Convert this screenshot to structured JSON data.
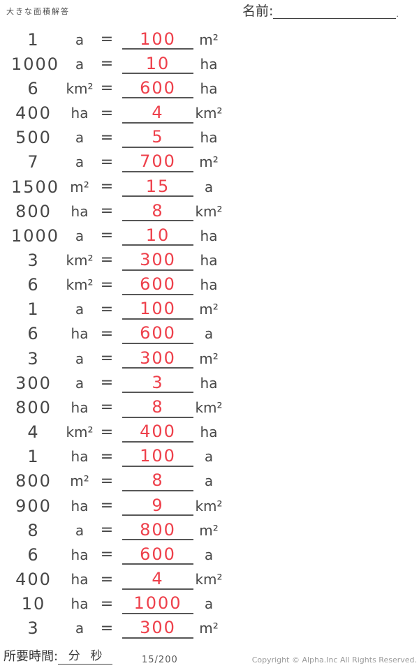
{
  "header": {
    "title": "大きな面積解答",
    "name_label": "名前:",
    "name_suffix": "."
  },
  "equals": "=",
  "rows": [
    {
      "value": "1",
      "unit": "a",
      "answer": "100",
      "answer_unit": "m²"
    },
    {
      "value": "1000",
      "unit": "a",
      "answer": "10",
      "answer_unit": "ha"
    },
    {
      "value": "6",
      "unit": "km²",
      "answer": "600",
      "answer_unit": "ha"
    },
    {
      "value": "400",
      "unit": "ha",
      "answer": "4",
      "answer_unit": "km²"
    },
    {
      "value": "500",
      "unit": "a",
      "answer": "5",
      "answer_unit": "ha"
    },
    {
      "value": "7",
      "unit": "a",
      "answer": "700",
      "answer_unit": "m²"
    },
    {
      "value": "1500",
      "unit": "m²",
      "answer": "15",
      "answer_unit": "a"
    },
    {
      "value": "800",
      "unit": "ha",
      "answer": "8",
      "answer_unit": "km²"
    },
    {
      "value": "1000",
      "unit": "a",
      "answer": "10",
      "answer_unit": "ha"
    },
    {
      "value": "3",
      "unit": "km²",
      "answer": "300",
      "answer_unit": "ha"
    },
    {
      "value": "6",
      "unit": "km²",
      "answer": "600",
      "answer_unit": "ha"
    },
    {
      "value": "1",
      "unit": "a",
      "answer": "100",
      "answer_unit": "m²"
    },
    {
      "value": "6",
      "unit": "ha",
      "answer": "600",
      "answer_unit": "a"
    },
    {
      "value": "3",
      "unit": "a",
      "answer": "300",
      "answer_unit": "m²"
    },
    {
      "value": "300",
      "unit": "a",
      "answer": "3",
      "answer_unit": "ha"
    },
    {
      "value": "800",
      "unit": "ha",
      "answer": "8",
      "answer_unit": "km²"
    },
    {
      "value": "4",
      "unit": "km²",
      "answer": "400",
      "answer_unit": "ha"
    },
    {
      "value": "1",
      "unit": "ha",
      "answer": "100",
      "answer_unit": "a"
    },
    {
      "value": "800",
      "unit": "m²",
      "answer": "8",
      "answer_unit": "a"
    },
    {
      "value": "900",
      "unit": "ha",
      "answer": "9",
      "answer_unit": "km²"
    },
    {
      "value": "8",
      "unit": "a",
      "answer": "800",
      "answer_unit": "m²"
    },
    {
      "value": "6",
      "unit": "ha",
      "answer": "600",
      "answer_unit": "a"
    },
    {
      "value": "400",
      "unit": "ha",
      "answer": "4",
      "answer_unit": "km²"
    },
    {
      "value": "10",
      "unit": "ha",
      "answer": "1000",
      "answer_unit": "a"
    },
    {
      "value": "3",
      "unit": "a",
      "answer": "300",
      "answer_unit": "m²"
    }
  ],
  "footer": {
    "time_label": "所要時間:",
    "minutes_label": "分",
    "seconds_label": "秒",
    "page": "15/200",
    "copyright": "Copyright © Alpha.Inc All Rights Reserved."
  },
  "colors": {
    "red": "#ee404b",
    "line": "#575757",
    "ink": "#454545",
    "muted": "#9b9b9b"
  }
}
